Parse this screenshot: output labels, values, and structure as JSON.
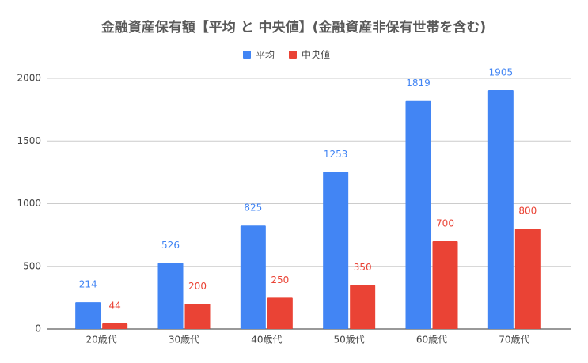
{
  "chart_data": {
    "type": "bar",
    "title": "金融資産保有額【平均 と 中央値】(金融資産非保有世帯を含む)",
    "categories": [
      "20歳代",
      "30歳代",
      "40歳代",
      "50歳代",
      "60歳代",
      "70歳代"
    ],
    "series": [
      {
        "name": "平均",
        "color": "#4285f4",
        "values": [
          214,
          526,
          825,
          1253,
          1819,
          1905
        ]
      },
      {
        "name": "中央値",
        "color": "#ea4335",
        "values": [
          44,
          200,
          250,
          350,
          700,
          800
        ]
      }
    ],
    "ylim": [
      0,
      2000
    ],
    "yticks": [
      0,
      500,
      1000,
      1500,
      2000
    ],
    "grid": true,
    "legend": "top"
  }
}
